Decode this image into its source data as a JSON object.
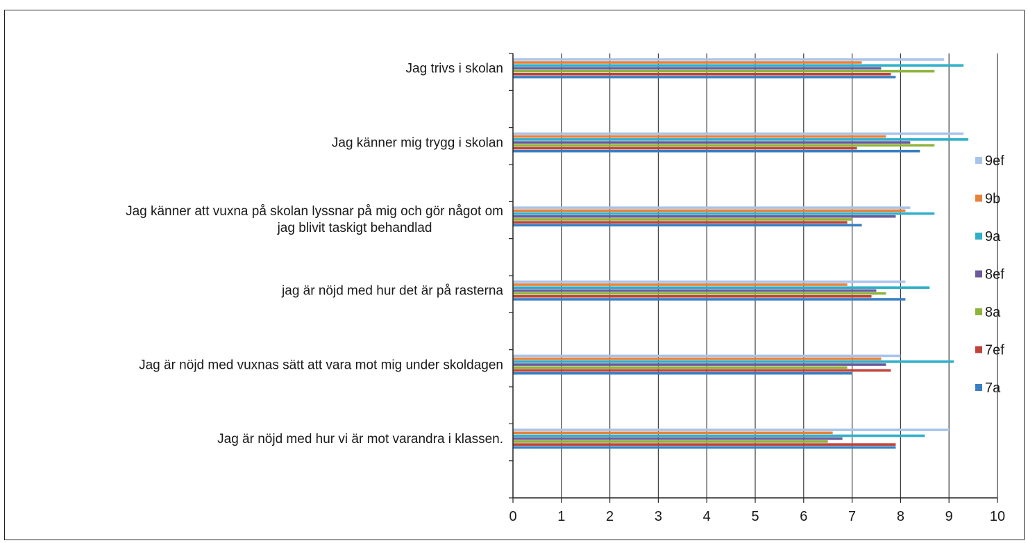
{
  "chart_data": {
    "type": "bar",
    "orientation": "horizontal",
    "categories": [
      "Jag trivs i skolan",
      "Jag känner mig trygg i skolan",
      "Jag känner att vuxna på skolan lyssnar på mig och gör något om jag blivit taskigt behandlad",
      "jag är nöjd med hur det är på rasterna",
      "Jag är nöjd med vuxnas sätt att vara mot mig under skoldagen",
      "Jag är nöjd med hur vi är mot varandra i klassen."
    ],
    "category_lines": [
      [
        "Jag trivs i skolan"
      ],
      [
        "Jag känner mig trygg i skolan"
      ],
      [
        "Jag känner att vuxna på skolan lyssnar på mig och gör något om",
        "jag blivit taskigt behandlad"
      ],
      [
        "jag är nöjd med hur det är på rasterna"
      ],
      [
        "Jag är nöjd med vuxnas sätt att vara mot mig under skoldagen"
      ],
      [
        "Jag är nöjd med hur vi är mot varandra i klassen."
      ]
    ],
    "series": [
      {
        "name": "9ef",
        "color": "#a9c4ea",
        "values": [
          8.9,
          9.3,
          8.2,
          8.1,
          8.0,
          9.0
        ]
      },
      {
        "name": "9b",
        "color": "#e8823a",
        "values": [
          7.2,
          7.7,
          8.1,
          6.9,
          7.6,
          6.6
        ]
      },
      {
        "name": "9a",
        "color": "#2fb0c8",
        "values": [
          9.3,
          9.4,
          8.7,
          8.6,
          9.1,
          8.5
        ]
      },
      {
        "name": "8ef",
        "color": "#6c5a9a",
        "values": [
          7.6,
          8.2,
          7.9,
          7.5,
          7.7,
          6.8
        ]
      },
      {
        "name": "8a",
        "color": "#8db43c",
        "values": [
          8.7,
          8.7,
          7.0,
          7.7,
          6.9,
          6.5
        ]
      },
      {
        "name": "7ef",
        "color": "#c0423b",
        "values": [
          7.8,
          7.1,
          6.9,
          7.4,
          7.8,
          7.9
        ]
      },
      {
        "name": "7a",
        "color": "#3a7fc2",
        "values": [
          7.9,
          8.4,
          7.2,
          8.1,
          7.0,
          7.9
        ]
      }
    ],
    "xlim": [
      0,
      10
    ],
    "xticks": [
      "0",
      "1",
      "2",
      "3",
      "4",
      "5",
      "6",
      "7",
      "8",
      "9",
      "10"
    ],
    "title": "",
    "xlabel": "",
    "ylabel": "",
    "grid": "vertical",
    "legend_placement": "right"
  }
}
